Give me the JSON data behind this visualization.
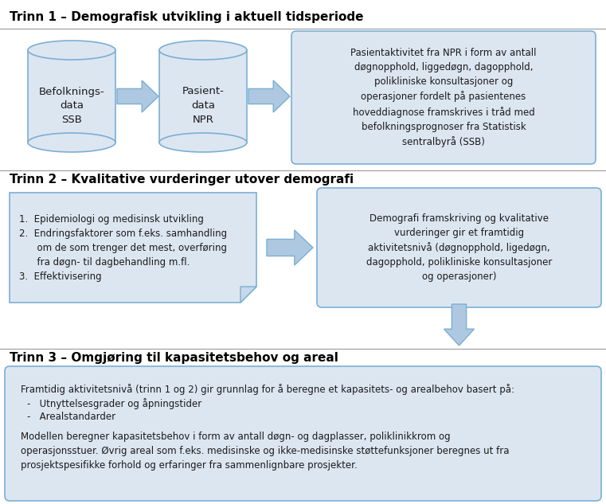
{
  "title1": "Trinn 1 – Demografisk utvikling i aktuell tidsperiode",
  "title2": "Trinn 2 – Kvalitative vurderinger utover demografi",
  "title3": "Trinn 3 – Omgjøring til kapasitetsbehov og areal",
  "cyl1_label": "Befolknings-\ndata\nSSB",
  "cyl2_label": "Pasient-\ndata\nNPR",
  "box1_text": "Pasientaktivitet fra NPR i form av antall\ndøgnopphold, liggedøgn, dagopphold,\npolikliniske konsultasjoner og\noperasjoner fordelt på pasientenes\nhoveddiagnose framskrives i tråd med\nbefolkningsprognoser fra Statistisk\nsentralbyrå (SSB)",
  "box2_left_text": "1.  Epidemiologi og medisinsk utvikling\n2.  Endringsfaktorer som f.eks. samhandling\n      om de som trenger det mest, overføring\n      fra døgn- til dagbehandling m.fl.\n3.  Effektivisering",
  "box2_right_text": "Demografi framskriving og kvalitative\nvurderinger gir et framtidig\naktivitetsnivå (døgnopphold, ligedøgn,\ndagopphold, polikliniske konsultasjoner\nog operasjoner)",
  "box3_text_line1": "Framtidig aktivitetsnivå (trinn 1 og 2) gir grunnlag for å beregne et kapasitets- og arealbehov basert på:",
  "box3_bullet1": "-   Utnyttelsesgrader og åpningstider",
  "box3_bullet2": "-   Arealstandarder",
  "box3_text_line2": "Modellen beregner kapasitetsbehov i form av antall døgn- og dagplasser, poliklinikkrom og\noperasjonsstuer. Øvrig areal som f.eks. medisinske og ikke-medisinske støttefunksjoner beregnes ut fra\nprosjektspesifikke forhold og erfaringer fra sammenlignbare prosjekter.",
  "fill_color": "#dce6f1",
  "fill_color_light": "#e8f0f7",
  "border_color": "#7bafd4",
  "arrow_fill": "#adc8e0",
  "arrow_border": "#7bafd4",
  "title_color": "#000000",
  "bg_color": "#ffffff",
  "text_color": "#1a1a1a",
  "figw": 7.61,
  "figh": 6.33,
  "dpi": 100
}
